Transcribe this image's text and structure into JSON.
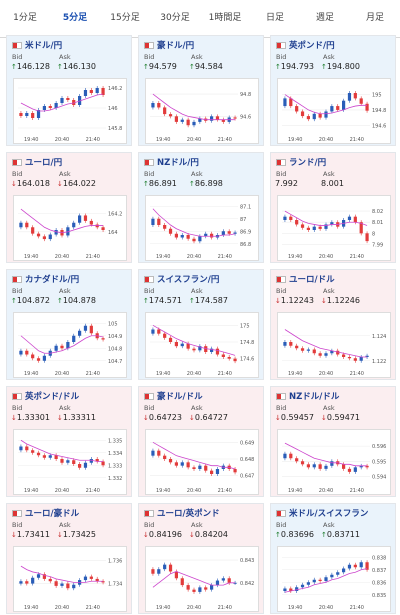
{
  "tabs": [
    {
      "label": "1分足",
      "active": false
    },
    {
      "label": "5分足",
      "active": true
    },
    {
      "label": "15分足",
      "active": false
    },
    {
      "label": "30分足",
      "active": false
    },
    {
      "label": "1時間足",
      "active": false
    },
    {
      "label": "日足",
      "active": false
    },
    {
      "label": "週足",
      "active": false
    },
    {
      "label": "月足",
      "active": false
    }
  ],
  "colors": {
    "up_bar": "#2a5db8",
    "down_bar": "#e23b3b",
    "ma_line": "#cc44cc",
    "bid_up": "#1c7c2c",
    "bid_down": "#c62828"
  },
  "cards": [
    {
      "pair": "米ドル/円",
      "dir": "up",
      "bid_label": "Bid",
      "ask_label": "Ask",
      "bid": "146.128",
      "ask": "146.130",
      "arrow": "↑",
      "chart_data": {
        "type": "candlestick",
        "x_ticks": [
          "19:40",
          "20:40",
          "21:40"
        ],
        "y_ticks": [
          "146.2",
          "146",
          "145.8"
        ],
        "ylim": [
          145.75,
          146.25
        ],
        "closes": [
          145.92,
          145.95,
          145.9,
          145.98,
          146.02,
          146.0,
          146.05,
          146.1,
          146.08,
          146.03,
          146.12,
          146.18,
          146.15,
          146.2,
          146.13
        ],
        "ma": [
          146.05,
          146.02,
          145.99,
          145.97,
          145.97,
          145.98,
          146.0,
          146.02,
          146.04,
          146.05,
          146.07,
          146.09,
          146.11,
          146.13,
          146.14
        ]
      }
    },
    {
      "pair": "豪ドル/円",
      "dir": "up",
      "bid_label": "Bid",
      "ask_label": "Ask",
      "bid": "94.579",
      "ask": "94.584",
      "arrow": "↑",
      "chart_data": {
        "type": "candlestick",
        "x_ticks": [
          "19:40",
          "20:40",
          "21:40"
        ],
        "y_ticks": [
          "94.8",
          "94.6"
        ],
        "ylim": [
          94.45,
          94.9
        ],
        "closes": [
          94.72,
          94.68,
          94.62,
          94.6,
          94.55,
          94.57,
          94.52,
          94.55,
          94.58,
          94.56,
          94.6,
          94.57,
          94.55,
          94.59,
          94.58
        ],
        "ma": [
          94.8,
          94.76,
          94.72,
          94.68,
          94.65,
          94.62,
          94.6,
          94.59,
          94.58,
          94.57,
          94.57,
          94.57,
          94.57,
          94.57,
          94.57
        ]
      }
    },
    {
      "pair": "英ポンド/円",
      "dir": "up",
      "bid_label": "Bid",
      "ask_label": "Ask",
      "bid": "194.793",
      "ask": "194.800",
      "arrow": "↑",
      "chart_data": {
        "type": "candlestick",
        "x_ticks": [
          "19:40",
          "20:40",
          "21:40"
        ],
        "y_ticks": [
          "195",
          "194.8",
          "194.6"
        ],
        "ylim": [
          194.5,
          195.15
        ],
        "closes": [
          194.95,
          194.85,
          194.78,
          194.72,
          194.68,
          194.75,
          194.7,
          194.78,
          194.85,
          194.8,
          194.92,
          195.02,
          194.95,
          194.88,
          194.79
        ],
        "ma": [
          195.0,
          194.95,
          194.9,
          194.85,
          194.8,
          194.77,
          194.75,
          194.75,
          194.76,
          194.78,
          194.8,
          194.83,
          194.85,
          194.86,
          194.86
        ]
      }
    },
    {
      "pair": "ユーロ/円",
      "dir": "down",
      "bid_label": "Bid",
      "ask_label": "Ask",
      "bid": "164.018",
      "ask": "164.022",
      "arrow": "↓",
      "chart_data": {
        "type": "candlestick",
        "x_ticks": [
          "19:40",
          "20:40",
          "21:40"
        ],
        "y_ticks": [
          "164.2",
          "164"
        ],
        "ylim": [
          163.8,
          164.35
        ],
        "closes": [
          164.1,
          164.05,
          163.98,
          163.95,
          163.92,
          163.97,
          164.02,
          163.96,
          164.05,
          164.1,
          164.18,
          164.12,
          164.08,
          164.05,
          164.02
        ],
        "ma": [
          164.25,
          164.2,
          164.15,
          164.1,
          164.05,
          164.02,
          164.0,
          163.99,
          164.0,
          164.02,
          164.04,
          164.06,
          164.07,
          164.07,
          164.07
        ]
      }
    },
    {
      "pair": "NZドル/円",
      "dir": "up",
      "bid_label": "Bid",
      "ask_label": "Ask",
      "bid": "86.891",
      "ask": "86.898",
      "arrow": "↑",
      "chart_data": {
        "type": "candlestick",
        "x_ticks": [
          "19:40",
          "20:40",
          "21:40"
        ],
        "y_ticks": [
          "87.1",
          "87",
          "86.9",
          "86.8"
        ],
        "ylim": [
          86.75,
          87.15
        ],
        "closes": [
          87.0,
          86.95,
          86.92,
          86.88,
          86.85,
          86.87,
          86.84,
          86.82,
          86.86,
          86.88,
          86.85,
          86.87,
          86.9,
          86.88,
          86.89
        ],
        "ma": [
          87.08,
          87.03,
          86.99,
          86.95,
          86.92,
          86.9,
          86.88,
          86.87,
          86.86,
          86.86,
          86.86,
          86.86,
          86.87,
          86.87,
          86.88
        ]
      }
    },
    {
      "pair": "ランド/円",
      "dir": "down",
      "bid_label": "Bid",
      "ask_label": "Ask",
      "bid": "7.992",
      "ask": "8.001",
      "arrow": "",
      "chart_data": {
        "type": "candlestick",
        "x_ticks": [
          "19:40",
          "20:40",
          "21:40"
        ],
        "y_ticks": [
          "8.02",
          "8.01",
          "8",
          "7.99"
        ],
        "ylim": [
          7.985,
          8.03
        ],
        "closes": [
          8.015,
          8.012,
          8.008,
          8.005,
          8.003,
          8.006,
          8.004,
          8.008,
          8.01,
          8.006,
          8.012,
          8.015,
          8.01,
          8.0,
          7.993
        ],
        "ma": [
          8.02,
          8.017,
          8.014,
          8.011,
          8.009,
          8.008,
          8.007,
          8.007,
          8.008,
          8.008,
          8.009,
          8.01,
          8.01,
          8.009,
          8.007
        ]
      }
    },
    {
      "pair": "カナダドル/円",
      "dir": "up",
      "bid_label": "Bid",
      "ask_label": "Ask",
      "bid": "104.872",
      "ask": "104.878",
      "arrow": "↑",
      "chart_data": {
        "type": "candlestick",
        "x_ticks": [
          "19:40",
          "20:40",
          "21:40"
        ],
        "y_ticks": [
          "105",
          "104.9",
          "104.8",
          "104.7"
        ],
        "ylim": [
          104.65,
          105.05
        ],
        "closes": [
          104.78,
          104.75,
          104.72,
          104.7,
          104.74,
          104.78,
          104.82,
          104.8,
          104.85,
          104.9,
          104.94,
          104.98,
          104.92,
          104.88,
          104.87
        ],
        "ma": [
          104.9,
          104.86,
          104.82,
          104.78,
          104.76,
          104.76,
          104.77,
          104.78,
          104.8,
          104.82,
          104.85,
          104.88,
          104.9,
          104.9,
          104.89
        ]
      }
    },
    {
      "pair": "スイスフラン/円",
      "dir": "up",
      "bid_label": "Bid",
      "ask_label": "Ask",
      "bid": "174.571",
      "ask": "174.587",
      "arrow": "↑",
      "chart_data": {
        "type": "candlestick",
        "x_ticks": [
          "19:40",
          "20:40",
          "21:40"
        ],
        "y_ticks": [
          "175",
          "174.8",
          "174.6"
        ],
        "ylim": [
          174.5,
          175.1
        ],
        "closes": [
          174.95,
          174.9,
          174.85,
          174.8,
          174.75,
          174.78,
          174.72,
          174.7,
          174.75,
          174.68,
          174.72,
          174.65,
          174.62,
          174.6,
          174.57
        ],
        "ma": [
          175.0,
          174.96,
          174.92,
          174.88,
          174.84,
          174.81,
          174.78,
          174.76,
          174.74,
          174.72,
          174.71,
          174.7,
          174.68,
          174.66,
          174.64
        ]
      }
    },
    {
      "pair": "ユーロ/ドル",
      "dir": "down",
      "bid_label": "Bid",
      "ask_label": "Ask",
      "bid": "1.12243",
      "ask": "1.12246",
      "arrow": "↓",
      "chart_data": {
        "type": "candlestick",
        "x_ticks": [
          "19:40",
          "20:40",
          "21:40"
        ],
        "y_ticks": [
          "1.124",
          "1.122"
        ],
        "ylim": [
          1.1215,
          1.1255
        ],
        "closes": [
          1.1235,
          1.1232,
          1.123,
          1.1228,
          1.1229,
          1.1226,
          1.1224,
          1.1226,
          1.1228,
          1.1225,
          1.1223,
          1.1222,
          1.122,
          1.1223,
          1.1224
        ],
        "ma": [
          1.1245,
          1.1242,
          1.1239,
          1.1236,
          1.1234,
          1.1232,
          1.123,
          1.1229,
          1.1228,
          1.1227,
          1.1226,
          1.1225,
          1.1224,
          1.1223,
          1.1223
        ]
      }
    },
    {
      "pair": "英ポンド/ドル",
      "dir": "down",
      "bid_label": "Bid",
      "ask_label": "Ask",
      "bid": "1.33301",
      "ask": "1.33311",
      "arrow": "↓",
      "chart_data": {
        "type": "candlestick",
        "x_ticks": [
          "19:40",
          "20:40",
          "21:40"
        ],
        "y_ticks": [
          "1.335",
          "1.334",
          "1.333",
          "1.332"
        ],
        "ylim": [
          1.3315,
          1.3355
        ],
        "closes": [
          1.3345,
          1.3342,
          1.334,
          1.3338,
          1.3336,
          1.3338,
          1.3335,
          1.3332,
          1.3334,
          1.3331,
          1.3328,
          1.3332,
          1.3335,
          1.3333,
          1.333
        ],
        "ma": [
          1.335,
          1.3347,
          1.3345,
          1.3343,
          1.3341,
          1.3339,
          1.3338,
          1.3337,
          1.3336,
          1.3335,
          1.3334,
          1.3334,
          1.3334,
          1.3333,
          1.3333
        ]
      }
    },
    {
      "pair": "豪ドル/ドル",
      "dir": "down",
      "bid_label": "Bid",
      "ask_label": "Ask",
      "bid": "0.64723",
      "ask": "0.64727",
      "arrow": "↓",
      "chart_data": {
        "type": "candlestick",
        "x_ticks": [
          "19:40",
          "20:40",
          "21:40"
        ],
        "y_ticks": [
          "0.649",
          "0.648",
          "0.647"
        ],
        "ylim": [
          0.6465,
          0.6495
        ],
        "closes": [
          0.6485,
          0.6482,
          0.648,
          0.6478,
          0.6476,
          0.6478,
          0.6475,
          0.6474,
          0.6476,
          0.6473,
          0.6471,
          0.6474,
          0.6476,
          0.6474,
          0.6472
        ],
        "ma": [
          0.649,
          0.6488,
          0.6486,
          0.6484,
          0.6482,
          0.6481,
          0.648,
          0.6479,
          0.6478,
          0.6477,
          0.6476,
          0.6476,
          0.6475,
          0.6475,
          0.6474
        ]
      }
    },
    {
      "pair": "NZドル/ドル",
      "dir": "down",
      "bid_label": "Bid",
      "ask_label": "Ask",
      "bid": "0.59457",
      "ask": "0.59471",
      "arrow": "↓",
      "chart_data": {
        "type": "candlestick",
        "x_ticks": [
          "19:40",
          "20:40",
          "21:40"
        ],
        "y_ticks": [
          "0.596",
          "0.595",
          "0.594"
        ],
        "ylim": [
          0.5935,
          0.5968
        ],
        "closes": [
          0.5955,
          0.5952,
          0.595,
          0.5948,
          0.5946,
          0.5948,
          0.5945,
          0.5947,
          0.595,
          0.5948,
          0.5945,
          0.5943,
          0.5946,
          0.5947,
          0.5946
        ],
        "ma": [
          0.5962,
          0.596,
          0.5958,
          0.5956,
          0.5954,
          0.5952,
          0.5951,
          0.595,
          0.5949,
          0.5949,
          0.5948,
          0.5948,
          0.5947,
          0.5947,
          0.5947
        ]
      }
    },
    {
      "pair": "ユーロ/豪ドル",
      "dir": "down",
      "bid_label": "Bid",
      "ask_label": "Ask",
      "bid": "1.73411",
      "ask": "1.73425",
      "arrow": "↓",
      "chart_data": {
        "type": "candlestick",
        "x_ticks": [
          "19:40",
          "20:40",
          "21:40"
        ],
        "y_ticks": [
          "1.736",
          "1.734"
        ],
        "ylim": [
          1.7325,
          1.7368
        ],
        "closes": [
          1.7342,
          1.734,
          1.7345,
          1.7348,
          1.7344,
          1.7342,
          1.7338,
          1.734,
          1.7336,
          1.7339,
          1.7343,
          1.7346,
          1.7344,
          1.7342,
          1.7341
        ],
        "ma": [
          1.7355,
          1.7352,
          1.735,
          1.7349,
          1.7347,
          1.7346,
          1.7344,
          1.7343,
          1.7342,
          1.7341,
          1.7341,
          1.7341,
          1.7342,
          1.7342,
          1.7342
        ]
      }
    },
    {
      "pair": "ユーロ/英ポンド",
      "dir": "down",
      "bid_label": "Bid",
      "ask_label": "Ask",
      "bid": "0.84196",
      "ask": "0.84204",
      "arrow": "↓",
      "chart_data": {
        "type": "candlestick",
        "x_ticks": [
          "19:40",
          "20:40",
          "21:40"
        ],
        "y_ticks": [
          "0.843",
          "0.842"
        ],
        "ylim": [
          0.8412,
          0.8434
        ],
        "closes": [
          0.8424,
          0.8426,
          0.8428,
          0.8425,
          0.8422,
          0.8419,
          0.8417,
          0.8416,
          0.8418,
          0.8417,
          0.8419,
          0.8421,
          0.8422,
          0.842,
          0.842
        ],
        "ma": [
          0.8418,
          0.842,
          0.8422,
          0.8424,
          0.8425,
          0.8424,
          0.8423,
          0.8422,
          0.8421,
          0.842,
          0.8419,
          0.8419,
          0.8419,
          0.842,
          0.842
        ]
      }
    },
    {
      "pair": "米ドル/スイスフラン",
      "dir": "up",
      "bid_label": "Bid",
      "ask_label": "Ask",
      "bid": "0.83696",
      "ask": "0.83711",
      "arrow": "↑",
      "chart_data": {
        "type": "candlestick",
        "x_ticks": [
          "19:40",
          "20:40",
          "21:40"
        ],
        "y_ticks": [
          "0.838",
          "0.837",
          "0.836",
          "0.835"
        ],
        "ylim": [
          0.8345,
          0.8385
        ],
        "closes": [
          0.8355,
          0.8353,
          0.8356,
          0.8358,
          0.836,
          0.8362,
          0.8361,
          0.8364,
          0.8366,
          0.8368,
          0.8371,
          0.8374,
          0.8372,
          0.8376,
          0.837
        ],
        "ma": [
          0.8352,
          0.8353,
          0.8354,
          0.8355,
          0.8356,
          0.8358,
          0.8359,
          0.836,
          0.8362,
          0.8363,
          0.8365,
          0.8367,
          0.8368,
          0.837,
          0.8371
        ]
      }
    }
  ]
}
